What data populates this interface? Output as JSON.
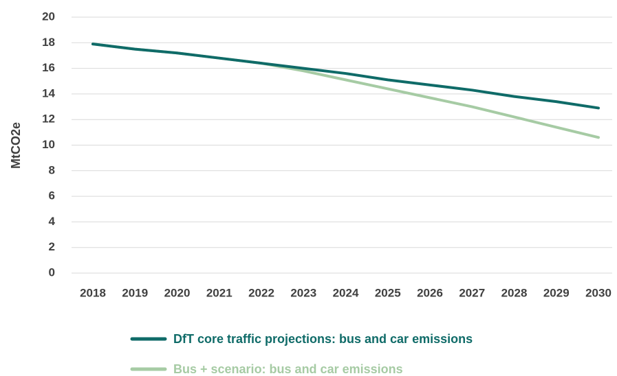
{
  "chart_data": {
    "type": "line",
    "y_label": "MtCO2e",
    "categories": [
      "2018",
      "2019",
      "2020",
      "2021",
      "2022",
      "2023",
      "2024",
      "2025",
      "2026",
      "2027",
      "2028",
      "2029",
      "2030"
    ],
    "series": [
      {
        "name": "DfT core traffic projections: bus and car emissions",
        "color": "#0f6b68",
        "values": [
          17.9,
          17.5,
          17.2,
          16.8,
          16.4,
          16.0,
          15.6,
          15.1,
          14.7,
          14.3,
          13.8,
          13.4,
          12.9
        ]
      },
      {
        "name": "Bus + scenario: bus and car emissions",
        "color": "#a6cba4",
        "values": [
          17.9,
          17.5,
          17.2,
          16.8,
          16.4,
          15.8,
          15.1,
          14.4,
          13.7,
          13.0,
          12.2,
          11.4,
          10.6
        ]
      }
    ],
    "ylim": [
      0,
      20
    ],
    "yticks": [
      0,
      2,
      4,
      6,
      8,
      10,
      12,
      14,
      16,
      18,
      20
    ],
    "grid": true,
    "legend": "bottom"
  }
}
